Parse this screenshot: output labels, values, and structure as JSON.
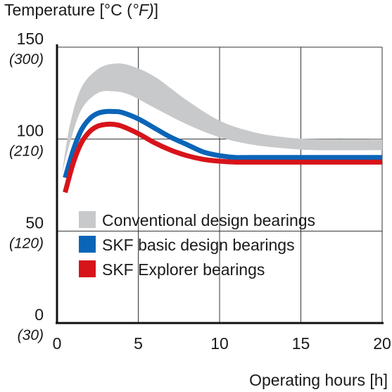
{
  "chart_data": {
    "type": "line",
    "ylabel_prefix": "Temperature [°C (",
    "ylabel_unit_alt": "°F)",
    "ylabel_suffix": "]",
    "xlabel": "Operating hours [h]",
    "xlim": [
      0,
      20
    ],
    "ylim": [
      0,
      150
    ],
    "x_ticks": [
      "0",
      "5",
      "10",
      "15",
      "20"
    ],
    "y_ticks": [
      {
        "value": 0,
        "label": "0",
        "alt_label": "(30)"
      },
      {
        "value": 50,
        "label": "50",
        "alt_label": "(120)"
      },
      {
        "value": 100,
        "label": "100",
        "alt_label": "(210)"
      },
      {
        "value": 150,
        "label": "150",
        "alt_label": "(300)"
      }
    ],
    "grid": "horizontal",
    "legend_position": "bottom-left-inside",
    "band": {
      "name": "Conventional design bearings",
      "color": "#c8c9cb",
      "x": [
        0.3,
        0.8,
        1.5,
        2.5,
        3.5,
        4.5,
        6,
        8,
        10,
        12,
        14,
        16,
        20
      ],
      "upper": [
        81,
        108,
        128,
        138,
        141,
        140,
        134,
        121,
        110,
        104,
        101,
        100,
        100
      ],
      "lower": [
        81,
        98,
        116,
        125,
        126,
        124,
        117,
        108,
        101,
        97,
        95,
        94,
        94
      ]
    },
    "series": [
      {
        "name": "SKF basic design bearings",
        "color": "#0a65b8",
        "x": [
          0.5,
          1,
          1.5,
          2,
          2.5,
          3,
          3.5,
          4,
          5,
          6,
          7,
          8,
          9,
          10,
          11,
          12,
          20
        ],
        "values": [
          79,
          94,
          105,
          111,
          114,
          115,
          115,
          114.5,
          111,
          106,
          101,
          97,
          93,
          91,
          90,
          90,
          90
        ]
      },
      {
        "name": "SKF Explorer bearings",
        "color": "#d7141a",
        "x": [
          0.5,
          1,
          1.5,
          2,
          2.5,
          3,
          3.5,
          4,
          5,
          6,
          7,
          8,
          9,
          10,
          11,
          12,
          20
        ],
        "values": [
          71,
          87,
          98,
          104,
          107,
          108,
          108,
          107,
          103,
          98,
          94,
          91,
          89,
          88,
          87.5,
          87.5,
          87.5
        ]
      }
    ]
  }
}
